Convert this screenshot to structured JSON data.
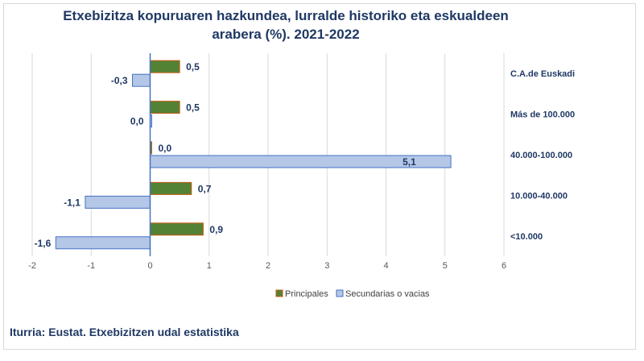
{
  "header": {
    "title_line1": "Etxebizitza kopuruaren hazkundea, lurralde historiko eta eskualdeen",
    "title_line2": "arabera (%). 2021-2022"
  },
  "footer": {
    "source": "Iturria: Eustat. Etxebizitzen udal estatistika"
  },
  "colors": {
    "principales": "#548235",
    "principales_border": "#c55a11",
    "secundarias": "#b4c7e7",
    "secundarias_border": "#4472c4",
    "axis": "#4472c4",
    "grid": "#d9d9d9",
    "text": "#1f3864"
  },
  "chart_data": {
    "type": "bar",
    "orientation": "horizontal",
    "title": "Etxebizitza kopuruaren hazkundea, lurralde historiko eta eskualdeen arabera (%). 2021-2022",
    "categories": [
      "C.A.de Euskadi",
      "Más de 100.000",
      "40.000-100.000",
      "10.000-40.000",
      "<10.000"
    ],
    "series": [
      {
        "name": "Principales",
        "values": [
          0.5,
          0.5,
          0.0,
          0.7,
          0.9
        ],
        "labels": [
          "0,5",
          "0,5",
          "0,0",
          "0,7",
          "0,9"
        ]
      },
      {
        "name": "Secundarias o vacias",
        "values": [
          -0.3,
          0.0,
          5.1,
          -1.1,
          -1.6
        ],
        "labels": [
          "-0,3",
          "0,0",
          "5,1",
          "-1,1",
          "-1,6"
        ]
      }
    ],
    "xlim": [
      -2,
      6
    ],
    "xticks": [
      "-2",
      "-1",
      "0",
      "1",
      "2",
      "3",
      "4",
      "5",
      "6"
    ],
    "grid": true,
    "legend": "bottom"
  }
}
